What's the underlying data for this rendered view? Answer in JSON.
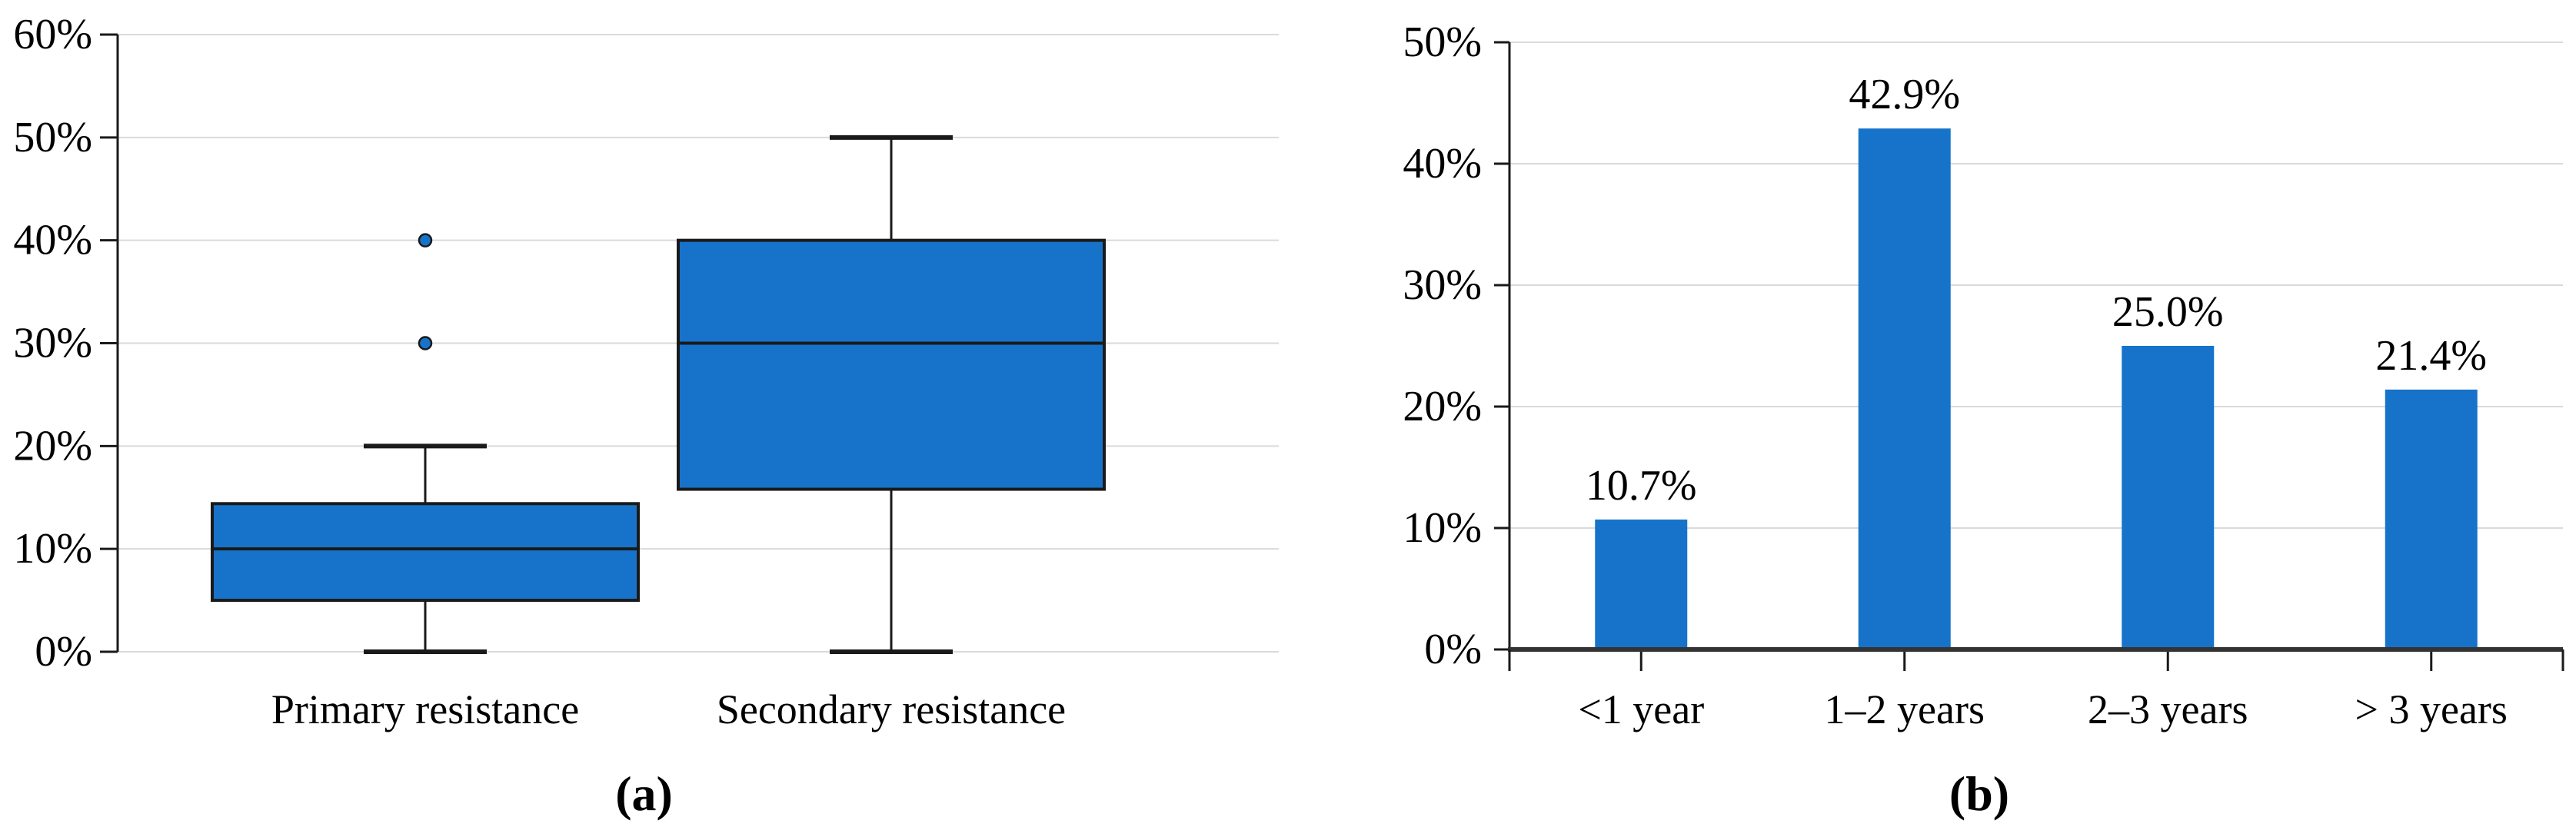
{
  "colors": {
    "series_blue": "#1773C9",
    "gridline": "#DADADA",
    "axis": "#1A1A1A",
    "baseline_axis": "#333333",
    "text": "#000000"
  },
  "chart_data": [
    {
      "type": "boxplot",
      "panel": "a",
      "caption": "(a)",
      "title": "",
      "xlabel": "",
      "ylabel": "",
      "ylim": [
        0,
        60
      ],
      "ytick_step": 10,
      "ytick_labels": [
        "0%",
        "10%",
        "20%",
        "30%",
        "40%",
        "50%",
        "60%"
      ],
      "grid": true,
      "legend": false,
      "categories": [
        "Primary resistance",
        "Secondary resistance"
      ],
      "series": [
        {
          "name": "Primary resistance",
          "whisker_low": 0,
          "q1": 5,
          "median": 10,
          "q3": 14.4,
          "whisker_high": 20,
          "outliers": [
            30,
            40
          ]
        },
        {
          "name": "Secondary resistance",
          "whisker_low": 0,
          "q1": 15.8,
          "median": 30,
          "q3": 40,
          "whisker_high": 50,
          "outliers": []
        }
      ]
    },
    {
      "type": "bar",
      "panel": "b",
      "caption": "(b)",
      "title": "",
      "xlabel": "",
      "ylabel": "",
      "ylim": [
        0,
        50
      ],
      "ytick_step": 10,
      "ytick_labels": [
        "0%",
        "10%",
        "20%",
        "30%",
        "40%",
        "50%"
      ],
      "grid": true,
      "legend": false,
      "categories": [
        "<1 year",
        "1–2 years",
        "2–3 years",
        "> 3 years"
      ],
      "values": [
        10.7,
        42.9,
        25.0,
        21.4
      ],
      "data_labels": [
        "10.7%",
        "42.9%",
        "25.0%",
        "21.4%"
      ]
    }
  ]
}
